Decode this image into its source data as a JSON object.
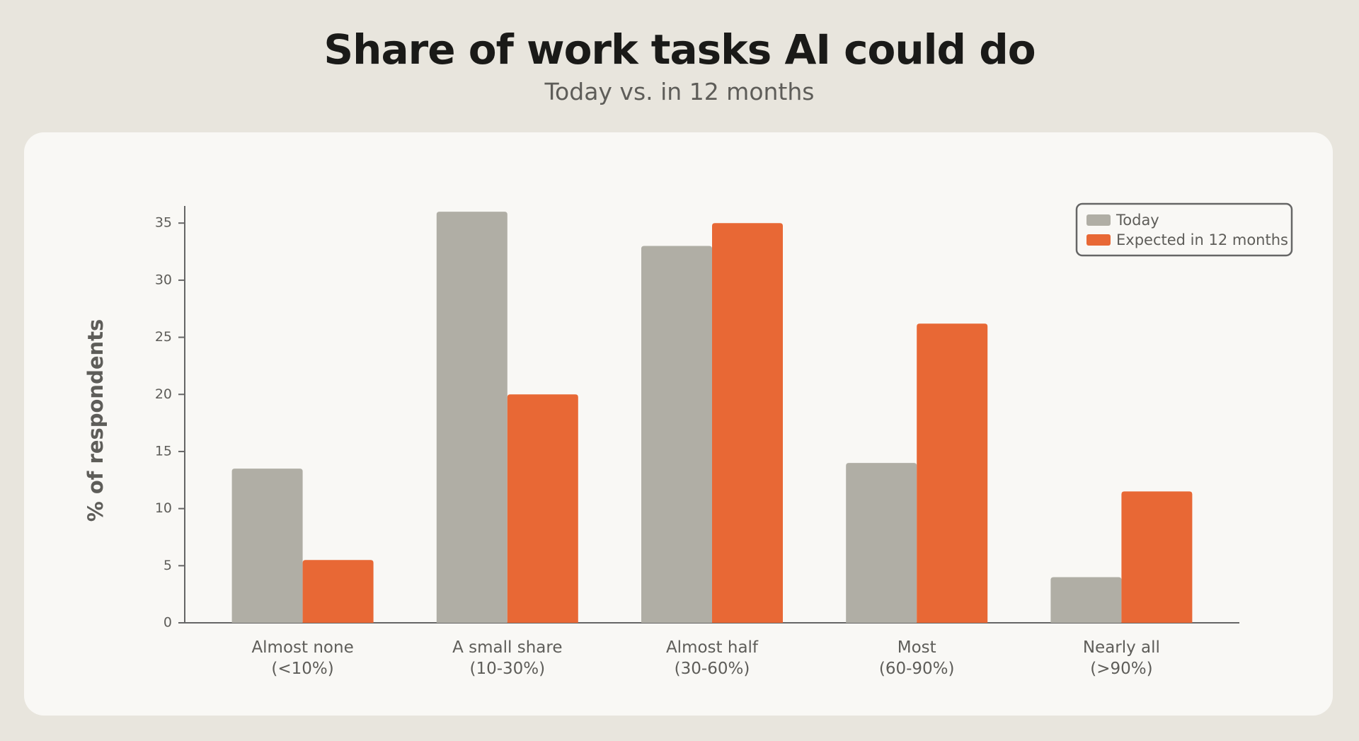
{
  "chart_data": {
    "type": "bar",
    "title": "Share of work tasks AI could do",
    "subtitle": "Today vs. in 12 months",
    "y_label": "% of respondents",
    "categories": [
      "Almost none\n(<10%)",
      "A small share\n(10-30%)",
      "Almost half\n(30-60%)",
      "Most\n(60-90%)",
      "Nearly all\n(>90%)"
    ],
    "series": [
      {
        "name": "Today",
        "color": "#b0aea5",
        "values": [
          13.5,
          36,
          33,
          14,
          4
        ]
      },
      {
        "name": "Expected in 12 months",
        "color": "#e86835",
        "values": [
          5.5,
          20,
          35,
          26.2,
          11.5
        ]
      }
    ],
    "ylim": [
      0,
      36.5
    ],
    "yticks": [
      0,
      5,
      10,
      15,
      20,
      25,
      30,
      35
    ],
    "legend": "top-right",
    "grid": false
  }
}
